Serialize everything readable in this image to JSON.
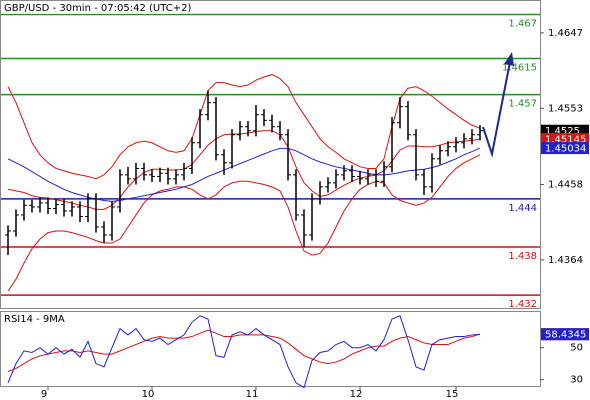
{
  "chart_data": [
    {
      "type": "ohlc",
      "title": "GBP/USD - 30min - 07:05:42 (UTC+2)",
      "color": "#000000",
      "last_label_color": "#000000",
      "ylim": [
        1.4304,
        1.4688
      ],
      "yticks": [
        1.4647,
        1.4553,
        1.4458,
        1.4364
      ],
      "open": [
        1.4395,
        1.44,
        1.442,
        1.4432,
        1.443,
        1.4435,
        1.4428,
        1.4433,
        1.4425,
        1.443,
        1.4418,
        1.444,
        1.4405,
        1.4395,
        1.443,
        1.447,
        1.4465,
        1.4478,
        1.447,
        1.4468,
        1.4472,
        1.4465,
        1.447,
        1.4478,
        1.451,
        1.4545,
        1.456,
        1.4495,
        1.4485,
        1.452,
        1.453,
        1.4525,
        1.4545,
        1.4538,
        1.453,
        1.452,
        1.447,
        1.442,
        1.4395,
        1.444,
        1.4455,
        1.446,
        1.447,
        1.4475,
        1.4468,
        1.4465,
        1.447,
        1.4462,
        1.448,
        1.4535,
        1.4555,
        1.452,
        1.447,
        1.4455,
        1.449,
        1.45,
        1.4505,
        1.451,
        1.4515,
        1.452
      ],
      "high": [
        1.4407,
        1.4427,
        1.4439,
        1.4439,
        1.4442,
        1.4442,
        1.444,
        1.444,
        1.4437,
        1.4437,
        1.4447,
        1.4447,
        1.4412,
        1.4437,
        1.4477,
        1.448,
        1.4485,
        1.4485,
        1.4477,
        1.4479,
        1.4479,
        1.4477,
        1.4485,
        1.4517,
        1.4552,
        1.4575,
        1.4567,
        1.4502,
        1.4527,
        1.4537,
        1.4537,
        1.4557,
        1.4552,
        1.4545,
        1.4537,
        1.4527,
        1.4477,
        1.4427,
        1.4447,
        1.4462,
        1.4467,
        1.4477,
        1.4482,
        1.4482,
        1.4475,
        1.4477,
        1.4477,
        1.4487,
        1.4542,
        1.4567,
        1.4562,
        1.4527,
        1.4477,
        1.4497,
        1.4507,
        1.4512,
        1.4517,
        1.4522,
        1.4527,
        1.4532
      ],
      "low": [
        1.437,
        1.4393,
        1.4413,
        1.4423,
        1.4423,
        1.4421,
        1.4421,
        1.4418,
        1.4418,
        1.4411,
        1.4411,
        1.4398,
        1.4385,
        1.4388,
        1.4423,
        1.4458,
        1.4458,
        1.4463,
        1.4461,
        1.4461,
        1.4458,
        1.4458,
        1.4463,
        1.4471,
        1.4503,
        1.4538,
        1.4488,
        1.447,
        1.4478,
        1.4513,
        1.4518,
        1.4518,
        1.4531,
        1.4523,
        1.4513,
        1.4463,
        1.4413,
        1.438,
        1.4388,
        1.4433,
        1.4448,
        1.4453,
        1.4463,
        1.4461,
        1.4458,
        1.4458,
        1.4455,
        1.4455,
        1.4473,
        1.4528,
        1.4513,
        1.4463,
        1.4445,
        1.4448,
        1.4483,
        1.4493,
        1.4498,
        1.4503,
        1.4508,
        1.4513
      ],
      "close": [
        1.44,
        1.442,
        1.4432,
        1.443,
        1.4435,
        1.4428,
        1.4433,
        1.4425,
        1.443,
        1.4418,
        1.444,
        1.4405,
        1.4395,
        1.443,
        1.447,
        1.4465,
        1.4478,
        1.447,
        1.4468,
        1.4472,
        1.4465,
        1.447,
        1.4478,
        1.451,
        1.4545,
        1.456,
        1.4495,
        1.4485,
        1.452,
        1.453,
        1.4525,
        1.4545,
        1.4538,
        1.453,
        1.452,
        1.447,
        1.442,
        1.4395,
        1.444,
        1.4455,
        1.446,
        1.447,
        1.4475,
        1.4468,
        1.4465,
        1.447,
        1.4462,
        1.448,
        1.4535,
        1.4555,
        1.452,
        1.447,
        1.4455,
        1.449,
        1.45,
        1.4505,
        1.451,
        1.4515,
        1.452,
        1.4525
      ],
      "overlays": [
        {
          "color": "#dd1111",
          "values": [
            1.458,
            1.456,
            1.4535,
            1.451,
            1.4495,
            1.4485,
            1.4478,
            1.4475,
            1.4472,
            1.447,
            1.4468,
            1.4465,
            1.447,
            1.448,
            1.4495,
            1.4505,
            1.451,
            1.4512,
            1.451,
            1.4505,
            1.45,
            1.4498,
            1.45,
            1.4515,
            1.4545,
            1.4575,
            1.4585,
            1.4585,
            1.4582,
            1.458,
            1.4582,
            1.4588,
            1.4592,
            1.4595,
            1.459,
            1.458,
            1.456,
            1.4545,
            1.453,
            1.4515,
            1.4505,
            1.4498,
            1.449,
            1.4485,
            1.448,
            1.4478,
            1.4478,
            1.449,
            1.453,
            1.4565,
            1.4578,
            1.458,
            1.4575,
            1.4568,
            1.456,
            1.4552,
            1.4545,
            1.4538,
            1.4532,
            1.4528
          ]
        },
        {
          "color": "#dd1111",
          "last_label": true,
          "values": [
            1.4452,
            1.445,
            1.4448,
            1.4444,
            1.4442,
            1.4441,
            1.4439,
            1.4437,
            1.4435,
            1.4432,
            1.443,
            1.4427,
            1.4427,
            1.4432,
            1.4442,
            1.4455,
            1.4465,
            1.4473,
            1.4477,
            1.4477,
            1.4476,
            1.4476,
            1.4477,
            1.4483,
            1.4495,
            1.4507,
            1.4515,
            1.452,
            1.4521,
            1.4521,
            1.4522,
            1.4524,
            1.4525,
            1.4525,
            1.452,
            1.4505,
            1.448,
            1.446,
            1.445,
            1.4443,
            1.4445,
            1.4451,
            1.4457,
            1.4462,
            1.4466,
            1.4468,
            1.447,
            1.4475,
            1.4487,
            1.4501,
            1.4506,
            1.4506,
            1.4505,
            1.4505,
            1.4507,
            1.451,
            1.4511,
            1.4512,
            1.4513,
            1.45145
          ]
        },
        {
          "color": "#dd1111",
          "values": [
            1.4325,
            1.434,
            1.436,
            1.4378,
            1.439,
            1.4398,
            1.44,
            1.44,
            1.4398,
            1.4395,
            1.4392,
            1.4388,
            1.4385,
            1.4385,
            1.439,
            1.4405,
            1.442,
            1.4435,
            1.4445,
            1.445,
            1.4452,
            1.4455,
            1.4455,
            1.4452,
            1.4445,
            1.444,
            1.4445,
            1.4455,
            1.446,
            1.4462,
            1.4462,
            1.446,
            1.4458,
            1.4455,
            1.445,
            1.443,
            1.44,
            1.4375,
            1.437,
            1.4372,
            1.4385,
            1.4405,
            1.4425,
            1.444,
            1.4452,
            1.4458,
            1.4462,
            1.446,
            1.4445,
            1.4438,
            1.4435,
            1.4432,
            1.4435,
            1.4442,
            1.4455,
            1.4468,
            1.4478,
            1.4485,
            1.449,
            1.4495
          ]
        },
        {
          "color": "#2222cc",
          "last_label": true,
          "values": [
            1.449,
            1.4485,
            1.448,
            1.4474,
            1.4468,
            1.4462,
            1.4457,
            1.4452,
            1.4448,
            1.4445,
            1.4442,
            1.444,
            1.4438,
            1.4437,
            1.4438,
            1.444,
            1.4442,
            1.4444,
            1.4446,
            1.4448,
            1.445,
            1.4452,
            1.4455,
            1.4458,
            1.4463,
            1.4468,
            1.4472,
            1.4476,
            1.448,
            1.4484,
            1.4488,
            1.4492,
            1.4496,
            1.45,
            1.4503,
            1.4503,
            1.45,
            1.4495,
            1.449,
            1.4486,
            1.4483,
            1.448,
            1.4478,
            1.4476,
            1.4474,
            1.4472,
            1.447,
            1.447,
            1.4471,
            1.4473,
            1.4475,
            1.4476,
            1.4477,
            1.4479,
            1.4482,
            1.4486,
            1.449,
            1.4495,
            1.4499,
            1.45034
          ]
        }
      ],
      "levels": [
        {
          "value": 1.467,
          "color": "#2a8a2a"
        },
        {
          "value": 1.4615,
          "color": "#2a8a2a"
        },
        {
          "value": 1.457,
          "color": "#2a8a2a"
        },
        {
          "value": 1.444,
          "color": "#1c1cb0"
        },
        {
          "value": 1.438,
          "color": "#d01010"
        },
        {
          "value": 1.432,
          "color": "#d01010"
        }
      ]
    },
    {
      "type": "line",
      "title": "RSI14 - 9MA",
      "categories": [
        null,
        null,
        null,
        null,
        null,
        "9",
        null,
        null,
        null,
        null,
        null,
        null,
        null,
        null,
        null,
        null,
        null,
        null,
        "10",
        null,
        null,
        null,
        null,
        null,
        null,
        null,
        null,
        null,
        null,
        null,
        null,
        "11",
        null,
        null,
        null,
        null,
        null,
        null,
        null,
        null,
        null,
        null,
        null,
        null,
        "12",
        null,
        null,
        null,
        null,
        null,
        null,
        null,
        null,
        null,
        null,
        null,
        "15",
        null,
        null,
        null
      ],
      "ylim": [
        26,
        73
      ],
      "yticks": [
        50,
        30
      ],
      "series": [
        {
          "color": "#dd1111",
          "last_label": true,
          "values": [
            35,
            37,
            40,
            43,
            45,
            46,
            47,
            48,
            48,
            47,
            48,
            47,
            46,
            46,
            48,
            50,
            52,
            54,
            56,
            57,
            56,
            56,
            56,
            57,
            59,
            61,
            59,
            57,
            57,
            58,
            58,
            58,
            58,
            57,
            56,
            53,
            49,
            45,
            43,
            41,
            40,
            41,
            43,
            46,
            48,
            50,
            51,
            51,
            54,
            56,
            57,
            55,
            53,
            52,
            52,
            52,
            54,
            56,
            57,
            58.4663
          ]
        },
        {
          "color": "#2222cc",
          "last_label": true,
          "values": [
            28,
            40,
            48,
            47,
            50,
            46,
            50,
            46,
            49,
            44,
            54,
            40,
            38,
            50,
            62,
            58,
            62,
            55,
            54,
            56,
            52,
            55,
            58,
            66,
            70,
            68,
            45,
            44,
            58,
            60,
            58,
            62,
            58,
            55,
            52,
            38,
            28,
            25,
            42,
            47,
            48,
            52,
            54,
            50,
            50,
            52,
            48,
            55,
            68,
            70,
            55,
            38,
            36,
            52,
            55,
            56,
            57,
            57,
            58,
            58.4345
          ]
        }
      ]
    }
  ]
}
